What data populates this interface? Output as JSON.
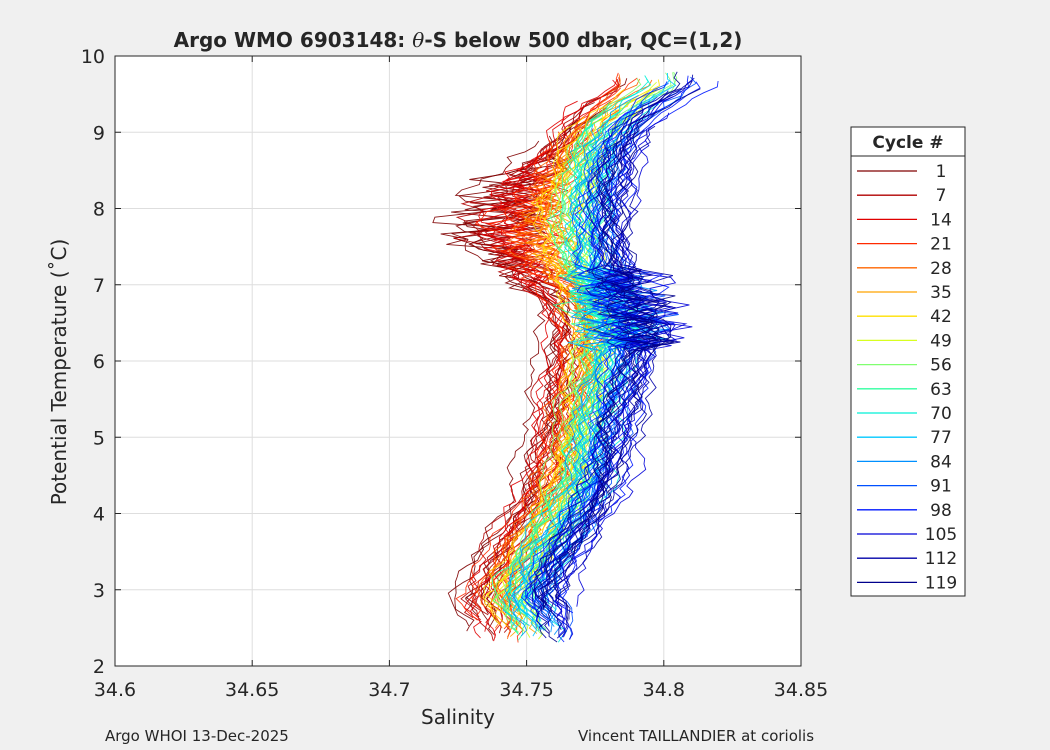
{
  "chart_data": {
    "type": "line",
    "title_parts": {
      "prefix": "Argo WMO 6903148: ",
      "theta": "θ",
      "suffix": "-S below 500 dbar,  QC=(1,2)"
    },
    "xlabel": "Salinity",
    "ylabel": "Potential Temperature (˚C)",
    "xlim": [
      34.6,
      34.85
    ],
    "ylim": [
      2,
      10
    ],
    "x_ticks": [
      "34.6",
      "34.65",
      "34.7",
      "34.75",
      "34.8",
      "34.85"
    ],
    "y_ticks": [
      "2",
      "3",
      "4",
      "5",
      "6",
      "7",
      "8",
      "9",
      "10"
    ],
    "grid": true,
    "legend": {
      "title": "Cycle #",
      "placement": "outside-right",
      "entries": [
        {
          "label": "1",
          "color": "#800000"
        },
        {
          "label": "7",
          "color": "#b00000"
        },
        {
          "label": "14",
          "color": "#e00000"
        },
        {
          "label": "21",
          "color": "#ff2a00"
        },
        {
          "label": "28",
          "color": "#ff6600"
        },
        {
          "label": "35",
          "color": "#ffa500"
        },
        {
          "label": "42",
          "color": "#ffe000"
        },
        {
          "label": "49",
          "color": "#d8ff20"
        },
        {
          "label": "56",
          "color": "#80ff70"
        },
        {
          "label": "63",
          "color": "#30ffa0"
        },
        {
          "label": "70",
          "color": "#00f0d8"
        },
        {
          "label": "77",
          "color": "#00c8ff"
        },
        {
          "label": "84",
          "color": "#0090ff"
        },
        {
          "label": "91",
          "color": "#0050ff"
        },
        {
          "label": "98",
          "color": "#0018ff"
        },
        {
          "label": "105",
          "color": "#0000d8"
        },
        {
          "label": "112",
          "color": "#0000a8"
        },
        {
          "label": "119",
          "color": "#00008c"
        }
      ]
    },
    "series_profile": [
      {
        "t": 2.3,
        "s": 34.748
      },
      {
        "t": 2.6,
        "s": 34.747
      },
      {
        "t": 2.9,
        "s": 34.743
      },
      {
        "t": 3.3,
        "s": 34.748
      },
      {
        "t": 3.8,
        "s": 34.756
      },
      {
        "t": 4.2,
        "s": 34.762
      },
      {
        "t": 4.6,
        "s": 34.766
      },
      {
        "t": 5.0,
        "s": 34.768
      },
      {
        "t": 5.5,
        "s": 34.771
      },
      {
        "t": 6.0,
        "s": 34.774
      },
      {
        "t": 6.4,
        "s": 34.776
      },
      {
        "t": 6.8,
        "s": 34.772
      },
      {
        "t": 7.2,
        "s": 34.768
      },
      {
        "t": 7.6,
        "s": 34.766
      },
      {
        "t": 8.0,
        "s": 34.766
      },
      {
        "t": 8.4,
        "s": 34.768
      },
      {
        "t": 8.8,
        "s": 34.771
      },
      {
        "t": 9.1,
        "s": 34.776
      },
      {
        "t": 9.4,
        "s": 34.785
      },
      {
        "t": 9.6,
        "s": 34.795
      }
    ]
  },
  "footer": {
    "left": "Argo WHOI 13-Dec-2025",
    "right": "Vincent TAILLANDIER at coriolis"
  }
}
